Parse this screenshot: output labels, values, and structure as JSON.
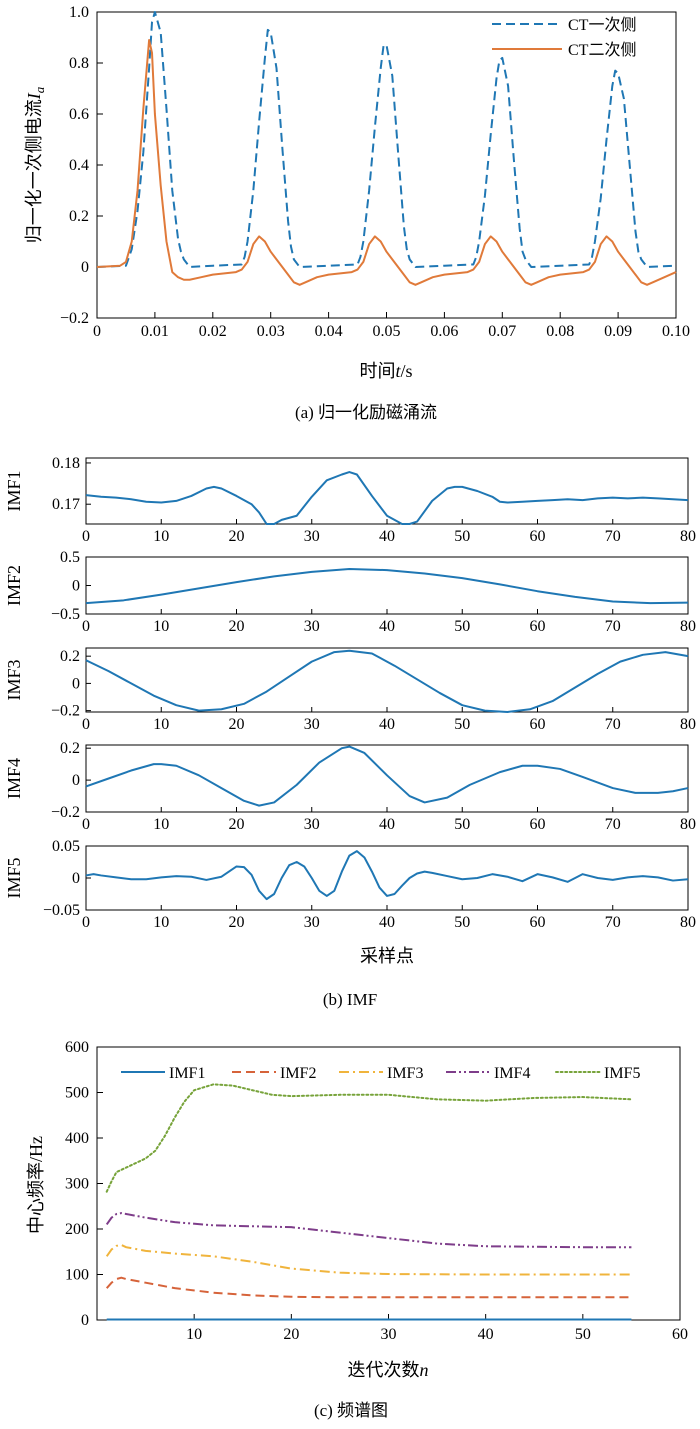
{
  "chart_data": [
    {
      "type": "line",
      "title": "",
      "caption": "(a) 归一化励磁涌流",
      "xlabel_main": "时间",
      "xlabel_var": "t",
      "xlabel_unit": "/s",
      "ylabel_main": "归一化一次侧电流",
      "ylabel_var": "I",
      "ylabel_sub": "a",
      "xlim": [
        0,
        0.1
      ],
      "ylim": [
        -0.2,
        1.0
      ],
      "xticks": [
        0,
        0.01,
        0.02,
        0.03,
        0.04,
        0.05,
        0.06,
        0.07,
        0.08,
        0.09,
        0.1
      ],
      "xtick_labels": [
        "0",
        "0.01",
        "0.02",
        "0.03",
        "0.04",
        "0.05",
        "0.06",
        "0.07",
        "0.08",
        "0.09",
        "0.10"
      ],
      "yticks": [
        -0.2,
        0,
        0.2,
        0.4,
        0.6,
        0.8,
        1.0
      ],
      "ytick_labels": [
        "−0.2",
        "0",
        "0.2",
        "0.4",
        "0.6",
        "0.8",
        "1.0"
      ],
      "legend_position": "top-right",
      "series": [
        {
          "name": "CT一次侧",
          "color": "#1f77b4",
          "style": "dashed",
          "x": [
            0,
            0.005,
            0.006,
            0.007,
            0.008,
            0.009,
            0.0095,
            0.01,
            0.011,
            0.012,
            0.013,
            0.014,
            0.0145,
            0.015,
            0.016,
            0.02,
            0.025,
            0.0255,
            0.026,
            0.027,
            0.028,
            0.029,
            0.0295,
            0.03,
            0.031,
            0.032,
            0.033,
            0.0335,
            0.034,
            0.035,
            0.04,
            0.045,
            0.0455,
            0.046,
            0.047,
            0.048,
            0.049,
            0.0495,
            0.05,
            0.051,
            0.052,
            0.053,
            0.0535,
            0.054,
            0.055,
            0.06,
            0.065,
            0.0655,
            0.066,
            0.067,
            0.068,
            0.069,
            0.0695,
            0.07,
            0.071,
            0.072,
            0.073,
            0.0735,
            0.074,
            0.075,
            0.08,
            0.085,
            0.0855,
            0.086,
            0.087,
            0.088,
            0.089,
            0.0895,
            0.09,
            0.091,
            0.092,
            0.093,
            0.0935,
            0.094,
            0.095,
            0.1
          ],
          "values": [
            0,
            0.005,
            0.07,
            0.22,
            0.45,
            0.78,
            0.96,
            1.0,
            0.92,
            0.62,
            0.3,
            0.11,
            0.06,
            0.03,
            0,
            0.005,
            0.01,
            0.04,
            0.1,
            0.3,
            0.57,
            0.82,
            0.93,
            0.92,
            0.78,
            0.47,
            0.18,
            0.08,
            0.03,
            0,
            0.005,
            0.01,
            0.04,
            0.1,
            0.3,
            0.55,
            0.78,
            0.87,
            0.87,
            0.75,
            0.45,
            0.16,
            0.07,
            0.03,
            0,
            0.005,
            0.01,
            0.04,
            0.1,
            0.28,
            0.52,
            0.74,
            0.81,
            0.82,
            0.71,
            0.42,
            0.15,
            0.06,
            0.03,
            0,
            0.005,
            0.01,
            0.04,
            0.1,
            0.27,
            0.5,
            0.71,
            0.77,
            0.76,
            0.66,
            0.4,
            0.14,
            0.06,
            0.03,
            0,
            0.005
          ]
        },
        {
          "name": "CT二次侧",
          "color": "#e07a3a",
          "style": "solid",
          "x": [
            0,
            0.004,
            0.005,
            0.006,
            0.007,
            0.008,
            0.009,
            0.0095,
            0.01,
            0.011,
            0.012,
            0.013,
            0.014,
            0.015,
            0.016,
            0.018,
            0.02,
            0.022,
            0.024,
            0.025,
            0.026,
            0.027,
            0.028,
            0.029,
            0.03,
            0.031,
            0.032,
            0.033,
            0.034,
            0.035,
            0.036,
            0.038,
            0.04,
            0.042,
            0.044,
            0.045,
            0.046,
            0.047,
            0.048,
            0.049,
            0.05,
            0.051,
            0.052,
            0.053,
            0.054,
            0.055,
            0.056,
            0.058,
            0.06,
            0.062,
            0.064,
            0.065,
            0.066,
            0.067,
            0.068,
            0.069,
            0.07,
            0.071,
            0.072,
            0.073,
            0.074,
            0.075,
            0.076,
            0.078,
            0.08,
            0.082,
            0.084,
            0.085,
            0.086,
            0.087,
            0.088,
            0.089,
            0.09,
            0.091,
            0.092,
            0.093,
            0.094,
            0.095,
            0.096,
            0.098,
            0.1
          ],
          "values": [
            0,
            0.005,
            0.02,
            0.1,
            0.3,
            0.62,
            0.89,
            0.84,
            0.6,
            0.32,
            0.1,
            -0.02,
            -0.04,
            -0.05,
            -0.05,
            -0.04,
            -0.03,
            -0.025,
            -0.02,
            -0.01,
            0.02,
            0.09,
            0.12,
            0.1,
            0.06,
            0.03,
            0,
            -0.03,
            -0.06,
            -0.07,
            -0.06,
            -0.04,
            -0.03,
            -0.025,
            -0.02,
            -0.01,
            0.02,
            0.09,
            0.12,
            0.1,
            0.06,
            0.03,
            0,
            -0.03,
            -0.06,
            -0.07,
            -0.06,
            -0.04,
            -0.03,
            -0.025,
            -0.02,
            -0.01,
            0.02,
            0.09,
            0.12,
            0.1,
            0.06,
            0.03,
            0,
            -0.03,
            -0.06,
            -0.07,
            -0.06,
            -0.04,
            -0.03,
            -0.025,
            -0.02,
            -0.01,
            0.02,
            0.09,
            0.12,
            0.1,
            0.06,
            0.03,
            0,
            -0.03,
            -0.06,
            -0.07,
            -0.06,
            -0.04,
            -0.02
          ]
        }
      ]
    },
    {
      "type": "line",
      "title": "",
      "caption": "(b) IMF",
      "xlabel": "采样点",
      "xlim": [
        0,
        80
      ],
      "xticks": [
        0,
        10,
        20,
        30,
        40,
        50,
        60,
        70,
        80
      ],
      "xtick_labels": [
        "0",
        "10",
        "20",
        "30",
        "40",
        "50",
        "60",
        "70",
        "80"
      ],
      "panels": [
        {
          "ylabel": "IMF1",
          "ylim": [
            0.1652,
            0.1812
          ],
          "yticks": [
            0.17,
            0.18
          ],
          "ytick_labels": [
            "0.17",
            "0.18"
          ],
          "color": "#1f77b4",
          "x": [
            0,
            2,
            4,
            6,
            8,
            10,
            12,
            14,
            16,
            17,
            18,
            20,
            22,
            23,
            24,
            25,
            26,
            28,
            30,
            32,
            34,
            35,
            36,
            38,
            40,
            42,
            43,
            44,
            46,
            48,
            49,
            50,
            52,
            54,
            55,
            56,
            58,
            60,
            62,
            64,
            66,
            68,
            70,
            72,
            74,
            76,
            78,
            80
          ],
          "values": [
            0.1722,
            0.1718,
            0.1716,
            0.1712,
            0.1706,
            0.1704,
            0.1708,
            0.172,
            0.1738,
            0.1742,
            0.1738,
            0.172,
            0.17,
            0.168,
            0.1652,
            0.1652,
            0.1662,
            0.1672,
            0.1718,
            0.1758,
            0.1772,
            0.1778,
            0.1772,
            0.172,
            0.1672,
            0.1652,
            0.1652,
            0.1658,
            0.1708,
            0.1738,
            0.1742,
            0.1742,
            0.1732,
            0.1718,
            0.1706,
            0.1704,
            0.1706,
            0.1708,
            0.171,
            0.1712,
            0.171,
            0.1714,
            0.1716,
            0.1714,
            0.1716,
            0.1714,
            0.1712,
            0.171
          ]
        },
        {
          "ylabel": "IMF2",
          "ylim": [
            -0.5,
            0.5
          ],
          "yticks": [
            -0.5,
            0,
            0.5
          ],
          "ytick_labels": [
            "−0.5",
            "0",
            "0.5"
          ],
          "color": "#1f77b4",
          "x": [
            0,
            5,
            10,
            15,
            20,
            25,
            30,
            35,
            40,
            45,
            50,
            55,
            60,
            65,
            70,
            75,
            80
          ],
          "values": [
            -0.31,
            -0.26,
            -0.16,
            -0.05,
            0.06,
            0.16,
            0.24,
            0.29,
            0.27,
            0.21,
            0.13,
            0.02,
            -0.1,
            -0.2,
            -0.28,
            -0.31,
            -0.3
          ]
        },
        {
          "ylabel": "IMF3",
          "ylim": [
            -0.21,
            0.26
          ],
          "yticks": [
            -0.2,
            0,
            0.2
          ],
          "ytick_labels": [
            "−0.2",
            "0",
            "0.2"
          ],
          "color": "#1f77b4",
          "x": [
            0,
            3,
            6,
            9,
            12,
            15,
            18,
            21,
            24,
            27,
            30,
            33,
            35,
            38,
            41,
            44,
            47,
            50,
            53,
            56,
            59,
            62,
            65,
            68,
            71,
            74,
            77,
            80
          ],
          "values": [
            0.17,
            0.09,
            0,
            -0.09,
            -0.16,
            -0.2,
            -0.19,
            -0.15,
            -0.06,
            0.05,
            0.16,
            0.23,
            0.24,
            0.22,
            0.13,
            0.03,
            -0.07,
            -0.16,
            -0.2,
            -0.21,
            -0.19,
            -0.13,
            -0.03,
            0.07,
            0.16,
            0.21,
            0.23,
            0.2
          ]
        },
        {
          "ylabel": "IMF4",
          "ylim": [
            -0.2,
            0.22
          ],
          "yticks": [
            -0.2,
            0,
            0.2
          ],
          "ytick_labels": [
            "−0.2",
            "0",
            "0.2"
          ],
          "color": "#1f77b4",
          "x": [
            0,
            3,
            6,
            9,
            10,
            12,
            15,
            18,
            21,
            23,
            25,
            28,
            31,
            34,
            35,
            37,
            40,
            43,
            45,
            48,
            51,
            55,
            58,
            60,
            63,
            66,
            70,
            73,
            76,
            78,
            80
          ],
          "values": [
            -0.04,
            0.01,
            0.06,
            0.1,
            0.1,
            0.09,
            0.03,
            -0.05,
            -0.13,
            -0.16,
            -0.14,
            -0.03,
            0.11,
            0.2,
            0.21,
            0.17,
            0.03,
            -0.1,
            -0.14,
            -0.11,
            -0.03,
            0.05,
            0.09,
            0.09,
            0.07,
            0.02,
            -0.05,
            -0.08,
            -0.08,
            -0.07,
            -0.05
          ]
        },
        {
          "ylabel": "IMF5",
          "ylim": [
            -0.05,
            0.05
          ],
          "yticks": [
            -0.05,
            0,
            0.05
          ],
          "ytick_labels": [
            "−0.05",
            "0",
            "0.05"
          ],
          "color": "#1f77b4",
          "x": [
            0,
            1,
            2,
            4,
            6,
            8,
            10,
            12,
            14,
            16,
            18,
            19,
            20,
            21,
            22,
            23,
            24,
            25,
            26,
            27,
            28,
            29,
            30,
            31,
            32,
            33,
            34,
            35,
            36,
            37,
            38,
            39,
            40,
            41,
            42,
            43,
            44,
            45,
            46,
            48,
            50,
            52,
            54,
            56,
            58,
            60,
            62,
            64,
            66,
            68,
            70,
            72,
            74,
            76,
            78,
            80
          ],
          "values": [
            0.004,
            0.006,
            0.004,
            0.001,
            -0.002,
            -0.002,
            0.001,
            0.003,
            0.002,
            -0.003,
            0.002,
            0.01,
            0.018,
            0.017,
            0.005,
            -0.02,
            -0.033,
            -0.025,
            0,
            0.02,
            0.025,
            0.018,
            0,
            -0.02,
            -0.028,
            -0.02,
            0.01,
            0.035,
            0.042,
            0.032,
            0.01,
            -0.015,
            -0.028,
            -0.025,
            -0.012,
            0,
            0.007,
            0.01,
            0.008,
            0.003,
            -0.002,
            0,
            0.006,
            0.002,
            -0.005,
            0.006,
            0.001,
            -0.006,
            0.006,
            0,
            -0.003,
            0.001,
            0.003,
            0.001,
            -0.004,
            -0.002
          ]
        }
      ]
    },
    {
      "type": "line",
      "title": "",
      "caption": "(c) 频谱图",
      "xlabel_main": "迭代次数",
      "xlabel_var": "n",
      "ylabel": "中心频率/Hz",
      "xlim": [
        0,
        60
      ],
      "ylim": [
        0,
        600
      ],
      "xticks": [
        10,
        20,
        30,
        40,
        50,
        60
      ],
      "xtick_labels": [
        "10",
        "20",
        "30",
        "40",
        "50",
        "60"
      ],
      "yticks": [
        0,
        100,
        200,
        300,
        400,
        500,
        600
      ],
      "ytick_labels": [
        "0",
        "100",
        "200",
        "300",
        "400",
        "500",
        "600"
      ],
      "legend_position": "top",
      "series": [
        {
          "name": "IMF1",
          "color": "#1f77b4",
          "style": "solid",
          "x": [
            1,
            55
          ],
          "values": [
            1,
            1
          ]
        },
        {
          "name": "IMF2",
          "color": "#d6633a",
          "style": "dashed",
          "x": [
            1,
            1.5,
            2,
            2.5,
            3,
            5,
            8,
            12,
            16,
            20,
            25,
            30,
            40,
            50,
            55
          ],
          "values": [
            70,
            82,
            90,
            93,
            90,
            82,
            70,
            60,
            54,
            51,
            50,
            50,
            50,
            50,
            50
          ]
        },
        {
          "name": "IMF3",
          "color": "#f0b43c",
          "style": "dashdot",
          "x": [
            1,
            1.5,
            2,
            2.5,
            3,
            5,
            8,
            12,
            16,
            20,
            25,
            30,
            40,
            50,
            55
          ],
          "values": [
            140,
            155,
            163,
            165,
            160,
            152,
            146,
            140,
            128,
            113,
            104,
            101,
            100,
            100,
            100
          ]
        },
        {
          "name": "IMF4",
          "color": "#7e3d8a",
          "style": "dashdotdot",
          "x": [
            1,
            1.5,
            2,
            2.5,
            3,
            5,
            8,
            12,
            16,
            20,
            25,
            30,
            35,
            40,
            50,
            55
          ],
          "values": [
            210,
            225,
            233,
            235,
            233,
            225,
            215,
            208,
            206,
            204,
            192,
            180,
            168,
            162,
            160,
            160
          ]
        },
        {
          "name": "IMF5",
          "color": "#77a33a",
          "style": "dotted",
          "x": [
            1,
            1.5,
            2,
            3,
            4,
            5,
            6,
            7,
            8,
            9,
            10,
            12,
            14,
            16,
            18,
            20,
            25,
            30,
            35,
            40,
            45,
            50,
            55
          ],
          "values": [
            282,
            305,
            325,
            335,
            345,
            355,
            372,
            405,
            445,
            480,
            505,
            518,
            515,
            505,
            495,
            492,
            495,
            495,
            485,
            482,
            488,
            490,
            485
          ]
        }
      ]
    }
  ]
}
